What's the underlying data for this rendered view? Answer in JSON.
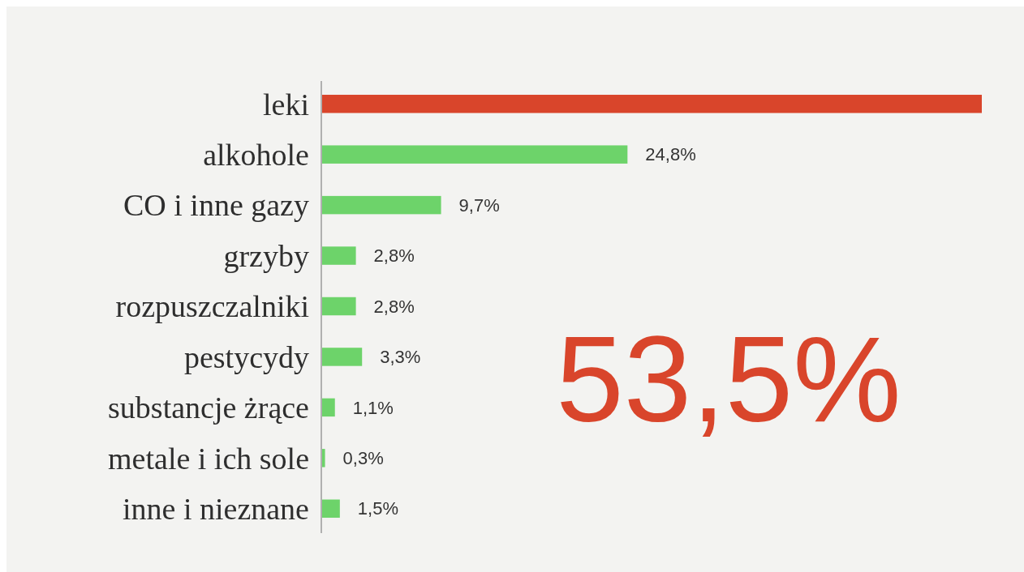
{
  "chart_data": {
    "type": "bar",
    "orientation": "horizontal",
    "categories": [
      "leki",
      "alkohole",
      "CO i inne gazy",
      "grzyby",
      "rozpuszczalniki",
      "pestycydy",
      "substancje żrące",
      "metale i ich sole",
      "inne i nieznane"
    ],
    "values": [
      53.5,
      24.8,
      9.7,
      2.8,
      2.8,
      3.3,
      1.1,
      0.3,
      1.5
    ],
    "colors": [
      "#d9452b",
      "#6dd36a",
      "#6dd36a",
      "#6dd36a",
      "#6dd36a",
      "#6dd36a",
      "#6dd36a",
      "#6dd36a",
      "#6dd36a"
    ],
    "value_labels": [
      null,
      "24,8%",
      "9,7%",
      "2,8%",
      "2,8%",
      "3,3%",
      "1,1%",
      "0,3%",
      "1,5%"
    ],
    "annotations": [
      "53,5%"
    ]
  }
}
